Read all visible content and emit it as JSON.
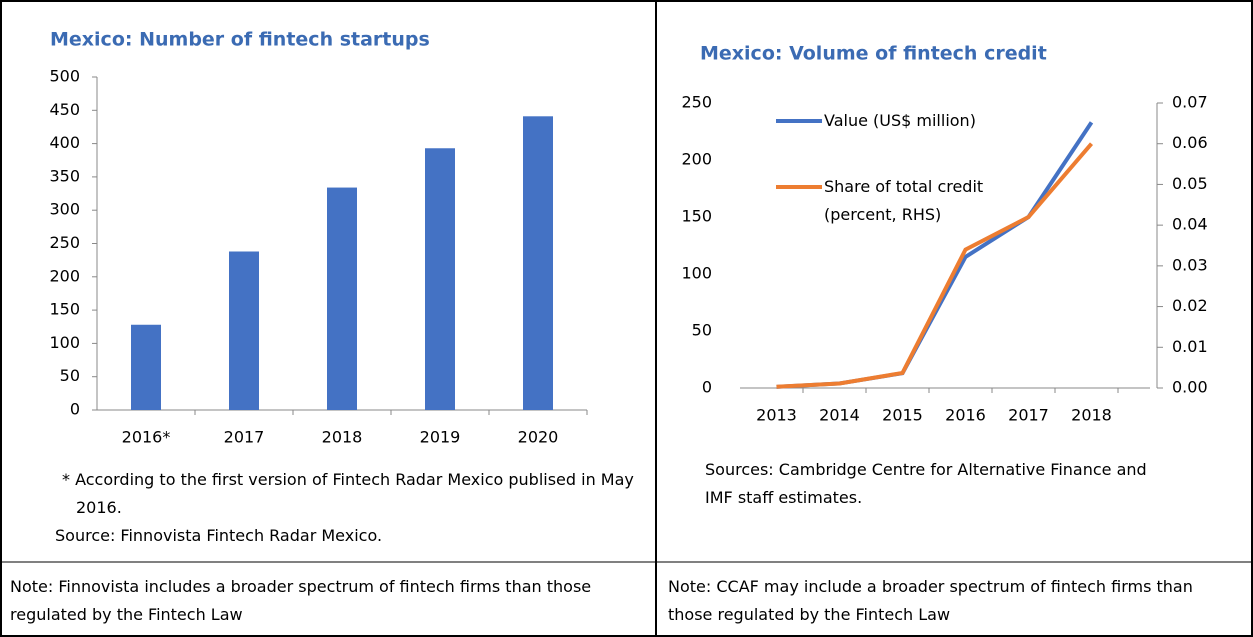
{
  "chart_data": [
    {
      "type": "bar",
      "title": "Mexico: Number of fintech startups",
      "categories": [
        "2016*",
        "2017",
        "2018",
        "2019",
        "2020"
      ],
      "values": [
        128,
        238,
        334,
        393,
        441
      ],
      "color": "#4472c4",
      "ylim": [
        0,
        500
      ],
      "yticks": [
        0,
        50,
        100,
        150,
        200,
        250,
        300,
        350,
        400,
        450,
        500
      ],
      "footnote": "* According to the first version of Fintech Radar Mexico publised in May 2016.",
      "source": "Source: Finnovista Fintech Radar Mexico.",
      "note": "Note: Finnovista includes a broader spectrum of fintech firms than those regulated by the Fintech Law"
    },
    {
      "type": "line",
      "title": "Mexico: Volume of fintech credit",
      "categories": [
        "2013",
        "2014",
        "2015",
        "2016",
        "2017",
        "2018"
      ],
      "series": [
        {
          "name": "Value (US$ million)",
          "color": "#4472c4",
          "values": [
            1,
            4,
            13,
            115,
            150,
            233
          ]
        },
        {
          "name": "Share of total credit (percent, RHS)",
          "color": "#ed7d31",
          "axis": "y2",
          "values": [
            0.0003,
            0.0011,
            0.0037,
            0.034,
            0.042,
            0.06
          ]
        }
      ],
      "ylim": [
        0,
        250
      ],
      "yticks": [
        0,
        50,
        100,
        150,
        200,
        250
      ],
      "y2lim": [
        0,
        0.07
      ],
      "y2ticks": [
        {
          "value": 0,
          "label": "0.00"
        },
        0.01,
        0.02,
        0.03,
        0.04,
        0.05,
        0.06,
        0.07
      ],
      "legend": "upper left",
      "source": "Sources: Cambridge Centre for Alternative Finance and IMF staff estimates.",
      "note": "Note: CCAF may include a broader spectrum of fintech firms than those regulated by the Fintech Law"
    }
  ]
}
